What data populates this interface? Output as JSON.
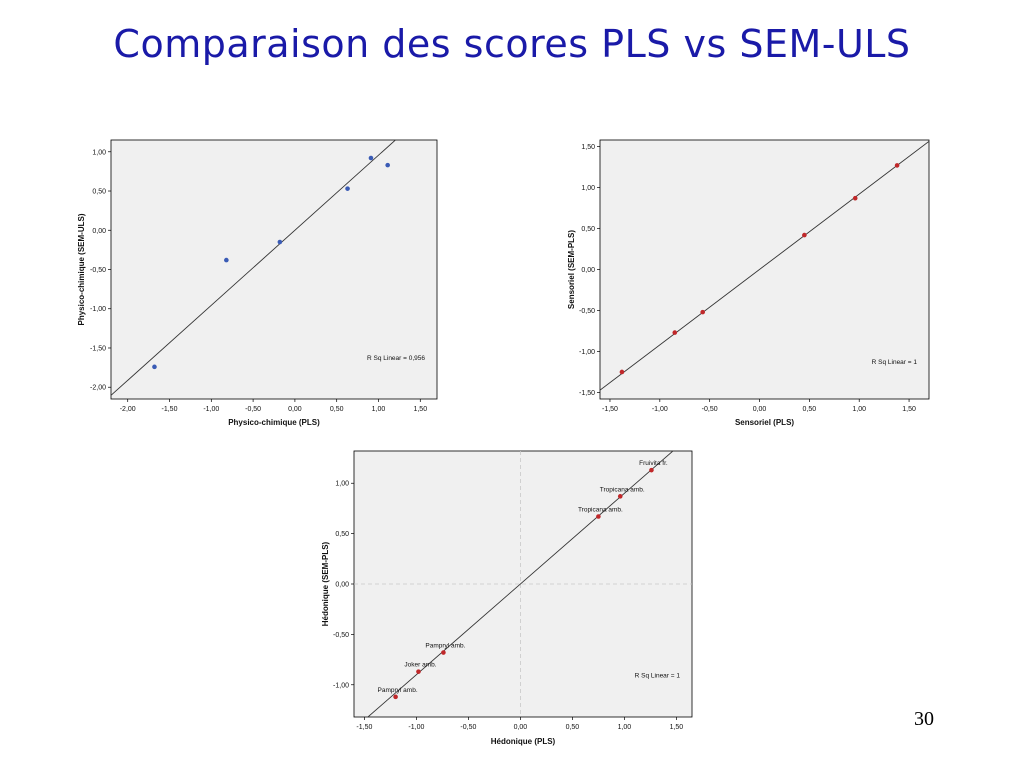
{
  "slide": {
    "title": "Comparaison des scores PLS vs SEM-ULS",
    "page_number": "30"
  },
  "chart_data": [
    {
      "type": "scatter",
      "xlabel": "Physico-chimique (PLS)",
      "ylabel": "Physico-chimique (SEM-ULS)",
      "xlim": [
        -2.2,
        1.7
      ],
      "ylim": [
        -2.15,
        1.15
      ],
      "xticks": [
        -2.0,
        -1.5,
        -1.0,
        -0.5,
        0.0,
        0.5,
        1.0,
        1.5
      ],
      "xtick_labels": [
        "-2,00",
        "-1,50",
        "-1,00",
        "-0,50",
        "0,00",
        "0,50",
        "1,00",
        "1,50"
      ],
      "yticks": [
        1.0,
        0.5,
        0.0,
        -0.5,
        -1.0,
        -1.5,
        -2.0
      ],
      "ytick_labels": [
        "1,00",
        "0,50",
        "0,00",
        "-0,50",
        "-1,00",
        "-1,50",
        "-2,00"
      ],
      "points": [
        {
          "x": -1.68,
          "y": -1.74
        },
        {
          "x": -0.82,
          "y": -0.38
        },
        {
          "x": -0.18,
          "y": -0.15
        },
        {
          "x": 0.63,
          "y": 0.53
        },
        {
          "x": 0.91,
          "y": 0.92
        },
        {
          "x": 1.11,
          "y": 0.83
        }
      ],
      "fit": {
        "slope": 0.956,
        "intercept": 0.0
      },
      "annotation": "R Sq Linear = 0,956",
      "point_color": "#3a5bb5",
      "grid": false
    },
    {
      "type": "scatter",
      "xlabel": "Sensoriel (PLS)",
      "ylabel": "Sensoriel (SEM-PLS)",
      "xlim": [
        -1.6,
        1.7
      ],
      "ylim": [
        -1.58,
        1.58
      ],
      "xticks": [
        -1.5,
        -1.0,
        -0.5,
        0.0,
        0.5,
        1.0,
        1.5
      ],
      "xtick_labels": [
        "-1,50",
        "-1,00",
        "-0,50",
        "0,00",
        "0,50",
        "1,00",
        "1,50"
      ],
      "yticks": [
        1.5,
        1.0,
        0.5,
        0.0,
        -0.5,
        -1.0,
        -1.5
      ],
      "ytick_labels": [
        "1,50",
        "1,00",
        "0,50",
        "0,00",
        "-0,50",
        "-1,00",
        "-1,50"
      ],
      "points": [
        {
          "x": -1.38,
          "y": -1.25
        },
        {
          "x": -0.85,
          "y": -0.77
        },
        {
          "x": -0.57,
          "y": -0.52
        },
        {
          "x": 0.45,
          "y": 0.42
        },
        {
          "x": 0.96,
          "y": 0.87
        },
        {
          "x": 1.38,
          "y": 1.27
        }
      ],
      "fit": {
        "slope": 0.92,
        "intercept": 0.0
      },
      "annotation": "R Sq Linear = 1",
      "point_color": "#c0282a",
      "grid": false
    },
    {
      "type": "scatter",
      "xlabel": "Hédonique (PLS)",
      "ylabel": "Hédonique (SEM-PLS)",
      "xlim": [
        -1.6,
        1.65
      ],
      "ylim": [
        -1.32,
        1.32
      ],
      "xticks": [
        -1.5,
        -1.0,
        -0.5,
        0.0,
        0.5,
        1.0,
        1.5
      ],
      "xtick_labels": [
        "-1,50",
        "-1,00",
        "-0,50",
        "0,00",
        "0,50",
        "1,00",
        "1,50"
      ],
      "yticks": [
        1.0,
        0.5,
        0.0,
        -0.5,
        -1.0
      ],
      "ytick_labels": [
        "1,00",
        "0,50",
        "0,00",
        "-0,50",
        "-1,00"
      ],
      "points": [
        {
          "x": -1.2,
          "y": -1.12,
          "label": "Pampryl amb."
        },
        {
          "x": -0.98,
          "y": -0.87,
          "label": "Joker amb."
        },
        {
          "x": -0.74,
          "y": -0.68,
          "label": "Pampryl amb."
        },
        {
          "x": 0.75,
          "y": 0.67,
          "label": "Tropicana amb."
        },
        {
          "x": 0.96,
          "y": 0.87,
          "label": "Tropicana amb."
        },
        {
          "x": 1.26,
          "y": 1.13,
          "label": "Fruivita fr."
        }
      ],
      "fit": {
        "slope": 0.9,
        "intercept": 0.0
      },
      "annotation": "R Sq Linear = 1",
      "point_color": "#c0282a",
      "reference_lines": {
        "x": 0.0,
        "y": 0.0
      },
      "grid": false
    }
  ]
}
